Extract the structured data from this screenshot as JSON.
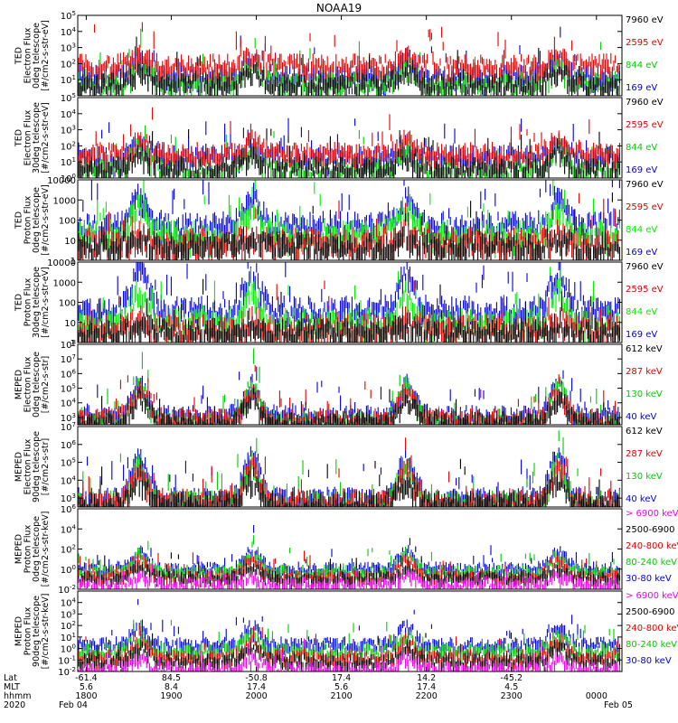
{
  "chart_data": {
    "type": "line",
    "title": "NOAA19",
    "x_tick_times": [
      "1800",
      "1900",
      "2000",
      "2100",
      "2200",
      "2300",
      "0000"
    ],
    "x_row_labels": [
      "Lat",
      "MLT",
      "hhmm",
      "2020"
    ],
    "x_lat_values": [
      "-61.4",
      "84.5",
      "-50.8",
      "17.4",
      "14.2",
      "-45.2",
      ""
    ],
    "x_mlt_values": [
      "5.6",
      "8.4",
      "17.4",
      "5.6",
      "17.4",
      "4.5",
      ""
    ],
    "x_hhmm_values": [
      "1800",
      "1900",
      "2000",
      "2100",
      "2200",
      "2300",
      "0000"
    ],
    "x_date_start": "Feb 04",
    "x_date_end": "Feb 05",
    "x_range_hours": [
      17.9,
      24.3
    ],
    "panels": [
      {
        "ylabel": [
          "TED",
          "Electron Flux",
          "0deg telescope",
          "[#/cm2-s-str-eV]"
        ],
        "log_min": 0,
        "log_max": 5,
        "yticks": [
          {
            "exp": 1,
            "text": "10",
            "sup": "1"
          },
          {
            "exp": 2,
            "text": "10",
            "sup": "2"
          },
          {
            "exp": 3,
            "text": "10",
            "sup": "3"
          },
          {
            "exp": 4,
            "text": "10",
            "sup": "4"
          },
          {
            "exp": 5,
            "text": "10",
            "sup": "5"
          }
        ],
        "series": [
          {
            "name": "7960 eV",
            "color": "#000000",
            "base": 1.0,
            "peak": 1.6
          },
          {
            "name": "2595 eV",
            "color": "#e00000",
            "base": 2.2,
            "peak": 2.6
          },
          {
            "name": "844 eV",
            "color": "#00cc00",
            "base": 1.1,
            "peak": 1.9
          },
          {
            "name": "169 eV",
            "color": "#0000e0",
            "base": 1.5,
            "peak": 2.4
          }
        ]
      },
      {
        "ylabel": [
          "TED",
          "Electron Flux",
          "30deg telescope",
          "[#/cm2-s-str-eV]"
        ],
        "log_min": 0,
        "log_max": 5,
        "yticks": [
          {
            "exp": 0,
            "text": "10",
            "sup": "0"
          },
          {
            "exp": 1,
            "text": "10",
            "sup": "1"
          },
          {
            "exp": 2,
            "text": "10",
            "sup": "2"
          },
          {
            "exp": 3,
            "text": "10",
            "sup": "3"
          },
          {
            "exp": 4,
            "text": "10",
            "sup": "4"
          },
          {
            "exp": 5,
            "text": "10",
            "sup": "5"
          }
        ],
        "series": [
          {
            "name": "7960 eV",
            "color": "#000000",
            "base": 0.9,
            "peak": 1.5
          },
          {
            "name": "2595 eV",
            "color": "#e00000",
            "base": 1.8,
            "peak": 2.4
          },
          {
            "name": "844 eV",
            "color": "#00cc00",
            "base": 0.8,
            "peak": 1.8
          },
          {
            "name": "169 eV",
            "color": "#0000e0",
            "base": 1.6,
            "peak": 2.2
          }
        ]
      },
      {
        "ylabel": [
          "TED",
          "Proton Flux",
          "0deg telescope",
          "[#/cm2-s-str-eV]"
        ],
        "log_min": 0,
        "log_max": 4,
        "yticks": [
          {
            "exp": 0,
            "text": "1",
            "sup": ""
          },
          {
            "exp": 1,
            "text": "10",
            "sup": ""
          },
          {
            "exp": 2,
            "text": "100",
            "sup": ""
          },
          {
            "exp": 3,
            "text": "1000",
            "sup": ""
          },
          {
            "exp": 4,
            "text": "10000",
            "sup": ""
          }
        ],
        "series": [
          {
            "name": "7960 eV",
            "color": "#000000",
            "base": 1.0,
            "peak": 1.3
          },
          {
            "name": "2595 eV",
            "color": "#e00000",
            "base": 1.2,
            "peak": 1.5
          },
          {
            "name": "844 eV",
            "color": "#00ee00",
            "base": 1.6,
            "peak": 2.6
          },
          {
            "name": "169 eV",
            "color": "#0000e0",
            "base": 2.0,
            "peak": 3.1
          }
        ]
      },
      {
        "ylabel": [
          "TED",
          "Proton Flux",
          "30deg telescope",
          "[#/cm2-s-str-eV]"
        ],
        "log_min": 0,
        "log_max": 4,
        "yticks": [
          {
            "exp": 0,
            "text": "1",
            "sup": ""
          },
          {
            "exp": 1,
            "text": "10",
            "sup": ""
          },
          {
            "exp": 2,
            "text": "100",
            "sup": ""
          },
          {
            "exp": 3,
            "text": "1000",
            "sup": ""
          },
          {
            "exp": 4,
            "text": "10000",
            "sup": ""
          }
        ],
        "series": [
          {
            "name": "7960 eV",
            "color": "#000000",
            "base": 0.8,
            "peak": 1.1
          },
          {
            "name": "2595 eV",
            "color": "#e00000",
            "base": 1.0,
            "peak": 1.3
          },
          {
            "name": "844 eV",
            "color": "#00ee00",
            "base": 1.3,
            "peak": 2.4
          },
          {
            "name": "169 eV",
            "color": "#0000e0",
            "base": 1.9,
            "peak": 3.3
          }
        ]
      },
      {
        "ylabel": [
          "MEPED",
          "Electron Flux",
          "0deg telescope",
          "[#/cm2-s-str]"
        ],
        "log_min": 2.5,
        "log_max": 8,
        "yticks": [
          {
            "exp": 3,
            "text": "10",
            "sup": "3"
          },
          {
            "exp": 4,
            "text": "10",
            "sup": "4"
          },
          {
            "exp": 5,
            "text": "10",
            "sup": "5"
          },
          {
            "exp": 6,
            "text": "10",
            "sup": "6"
          },
          {
            "exp": 7,
            "text": "10",
            "sup": "7"
          },
          {
            "exp": 8,
            "text": "10",
            "sup": "8"
          }
        ],
        "series": [
          {
            "name": "612 keV",
            "color": "#000000",
            "base": 3.0,
            "peak": 4.2
          },
          {
            "name": "287 keV",
            "color": "#e00000",
            "base": 3.2,
            "peak": 4.6
          },
          {
            "name": "130 keV",
            "color": "#00cc00",
            "base": 3.0,
            "peak": 4.8
          },
          {
            "name": "40 keV",
            "color": "#0000e0",
            "base": 3.4,
            "peak": 5.0
          }
        ]
      },
      {
        "ylabel": [
          "MEPED",
          "Electron Flux",
          "90deg telescope",
          "[#/cm2-s-str]"
        ],
        "log_min": 2.5,
        "log_max": 7,
        "yticks": [
          {
            "exp": 3,
            "text": "10",
            "sup": "3"
          },
          {
            "exp": 4,
            "text": "10",
            "sup": "4"
          },
          {
            "exp": 5,
            "text": "10",
            "sup": "5"
          },
          {
            "exp": 6,
            "text": "10",
            "sup": "6"
          },
          {
            "exp": 7,
            "text": "10",
            "sup": "7"
          }
        ],
        "series": [
          {
            "name": "612 keV",
            "color": "#000000",
            "base": 3.0,
            "peak": 4.0
          },
          {
            "name": "287 keV",
            "color": "#e00000",
            "base": 3.1,
            "peak": 4.4
          },
          {
            "name": "130 keV",
            "color": "#00cc00",
            "base": 3.0,
            "peak": 4.6
          },
          {
            "name": "40 keV",
            "color": "#0000e0",
            "base": 3.2,
            "peak": 5.0
          }
        ]
      },
      {
        "ylabel": [
          "MEPED",
          "Proton Flux",
          "0deg telescope",
          "[#/cm2-s-str-keV]"
        ],
        "log_min": -2,
        "log_max": 6,
        "yticks": [
          {
            "exp": -2,
            "text": "10",
            "sup": "-2"
          },
          {
            "exp": 0,
            "text": "10",
            "sup": "0"
          },
          {
            "exp": 2,
            "text": "10",
            "sup": "2"
          },
          {
            "exp": 4,
            "text": "10",
            "sup": "4"
          },
          {
            "exp": 6,
            "text": "10",
            "sup": "6"
          }
        ],
        "series": [
          {
            "name": "> 6900 keV",
            "color": "#ee00ee",
            "base": -1.2,
            "peak": -0.6
          },
          {
            "name": "2500-6900",
            "color": "#000000",
            "base": -0.6,
            "peak": 0.2
          },
          {
            "name": "240-800 keV",
            "color": "#e00000",
            "base": -0.5,
            "peak": 0.8
          },
          {
            "name": "80-240 keV",
            "color": "#00cc00",
            "base": 0.0,
            "peak": 1.2
          },
          {
            "name": "30-80 keV",
            "color": "#0000e0",
            "base": 0.3,
            "peak": 1.6
          }
        ]
      },
      {
        "ylabel": [
          "MEPED",
          "Proton Flux",
          "90deg telescope",
          "[#/cm2-s-str-keV]"
        ],
        "log_min": -2,
        "log_max": 5,
        "yticks": [
          {
            "exp": -2,
            "text": "10",
            "sup": "-2"
          },
          {
            "exp": -1,
            "text": "10",
            "sup": "-1"
          },
          {
            "exp": 0,
            "text": "10",
            "sup": "0"
          },
          {
            "exp": 1,
            "text": "10",
            "sup": "1"
          },
          {
            "exp": 2,
            "text": "10",
            "sup": "2"
          },
          {
            "exp": 3,
            "text": "10",
            "sup": "3"
          },
          {
            "exp": 4,
            "text": "10",
            "sup": "4"
          }
        ],
        "series": [
          {
            "name": "> 6900 keV",
            "color": "#ee00ee",
            "base": -1.5,
            "peak": -0.9
          },
          {
            "name": "2500-6900",
            "color": "#000000",
            "base": -0.8,
            "peak": 0.1
          },
          {
            "name": "240-800 keV",
            "color": "#e00000",
            "base": -0.5,
            "peak": 0.6
          },
          {
            "name": "80-240 keV",
            "color": "#00cc00",
            "base": 0.1,
            "peak": 1.0
          },
          {
            "name": "30-80 keV",
            "color": "#0000e0",
            "base": 0.6,
            "peak": 1.8
          }
        ]
      }
    ],
    "passes_hours": [
      18.63,
      19.95,
      21.77,
      23.55
    ],
    "x_start_hour": 18.0
  }
}
